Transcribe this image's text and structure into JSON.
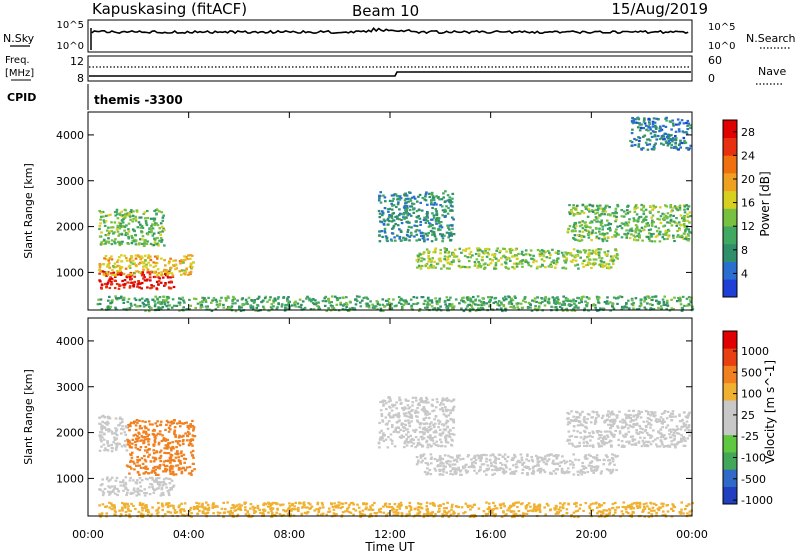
{
  "header": {
    "station": "Kapuskasing (fitACF)",
    "beam": "Beam 10",
    "date": "15/Aug/2019"
  },
  "summary_panels": {
    "nsky_label": "N.Sky",
    "nsky_ticks": [
      "10^5",
      "10^0"
    ],
    "nsearch_label": "N.Search",
    "nsearch_ticks": [
      "10^5",
      "10^0"
    ],
    "freq_label_1": "Freq.",
    "freq_label_2": "[MHz]",
    "freq_ticks": [
      "12",
      "8"
    ],
    "nave_label": "Nave",
    "nave_ticks": [
      "60",
      "0"
    ],
    "cpid_label": "CPID",
    "cpid_value": "themis -3300"
  },
  "colors": {
    "power_scale": [
      "#1f3fd6",
      "#2a6fd0",
      "#2f8f6a",
      "#40a860",
      "#78c040",
      "#d8d020",
      "#f0a020",
      "#f07010",
      "#e83010",
      "#e00000"
    ],
    "velocity_scale": [
      "#2040c0",
      "#306ac8",
      "#40a858",
      "#60c840",
      "#c8c8c8",
      "#c8c8c8",
      "#f0b030",
      "#f08020",
      "#e84010",
      "#e00000"
    ]
  },
  "chart_data": [
    {
      "type": "heatmap",
      "title": "Power",
      "xlabel": "",
      "ylabel": "Slant Range [km]",
      "x_ticks": [
        "00:00",
        "04:00",
        "08:00",
        "12:00",
        "16:00",
        "20:00",
        "00:00"
      ],
      "xlim_hours": [
        0,
        24
      ],
      "ylim": [
        180,
        4500
      ],
      "y_ticks": [
        1000,
        2000,
        3000,
        4000
      ],
      "colorbar": {
        "label": "Power [dB]",
        "ticks": [
          4,
          8,
          12,
          16,
          20,
          24,
          28
        ],
        "range": [
          0,
          30
        ]
      },
      "regions": [
        {
          "t": [
            0.4,
            3.4
          ],
          "r": [
            650,
            1050
          ],
          "v": 28
        },
        {
          "t": [
            0.4,
            4.2
          ],
          "r": [
            950,
            1400
          ],
          "v": 18
        },
        {
          "t": [
            0.4,
            3.0
          ],
          "r": [
            1600,
            2400
          ],
          "v": 12
        },
        {
          "t": [
            0.3,
            24.0
          ],
          "r": [
            180,
            500
          ],
          "v": 10
        },
        {
          "t": [
            11.5,
            14.5
          ],
          "r": [
            1700,
            2800
          ],
          "v": 8
        },
        {
          "t": [
            13.0,
            21.0
          ],
          "r": [
            1100,
            1550
          ],
          "v": 14
        },
        {
          "t": [
            19.0,
            23.9
          ],
          "r": [
            1700,
            2500
          ],
          "v": 12
        },
        {
          "t": [
            21.5,
            23.9
          ],
          "r": [
            3700,
            4400
          ],
          "v": 6
        }
      ]
    },
    {
      "type": "heatmap",
      "title": "Velocity",
      "xlabel": "Time UT",
      "ylabel": "Slant Range [km]",
      "x_ticks": [
        "00:00",
        "04:00",
        "08:00",
        "12:00",
        "16:00",
        "20:00",
        "00:00"
      ],
      "xlim_hours": [
        0,
        24
      ],
      "ylim": [
        180,
        4500
      ],
      "y_ticks": [
        1000,
        2000,
        3000,
        4000
      ],
      "colorbar": {
        "label": "Velocity [m s^-1]",
        "ticks": [
          1000,
          500,
          100,
          25,
          -25,
          -100,
          -500,
          -1000
        ]
      },
      "regions": [
        {
          "t": [
            0.4,
            3.4
          ],
          "r": [
            650,
            1050
          ],
          "v": 0
        },
        {
          "t": [
            1.5,
            4.2
          ],
          "r": [
            1100,
            2300
          ],
          "v": -200
        },
        {
          "t": [
            0.4,
            1.5
          ],
          "r": [
            1600,
            2400
          ],
          "v": 0
        },
        {
          "t": [
            0.3,
            24.0
          ],
          "r": [
            180,
            500
          ],
          "v": -80
        },
        {
          "t": [
            11.5,
            14.5
          ],
          "r": [
            1700,
            2800
          ],
          "v": 0
        },
        {
          "t": [
            13.0,
            21.0
          ],
          "r": [
            1100,
            1550
          ],
          "v": 0
        },
        {
          "t": [
            19.0,
            23.9
          ],
          "r": [
            1700,
            2500
          ],
          "v": 0
        }
      ]
    }
  ]
}
